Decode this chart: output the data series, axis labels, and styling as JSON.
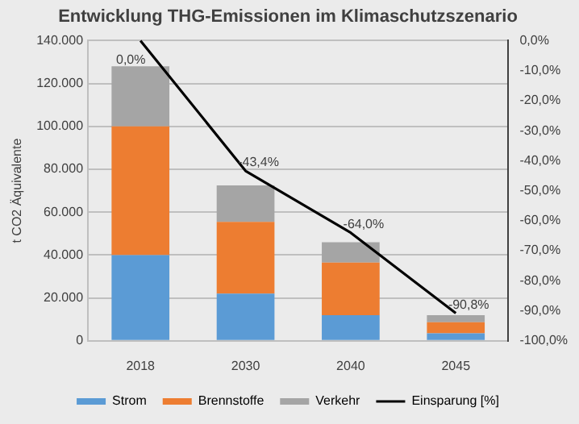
{
  "chart_data": {
    "type": "bar",
    "title": "Entwicklung THG-Emissionen im Klimaschutzszenario",
    "ylabel": "t CO2 Äquivalente",
    "categories": [
      "2018",
      "2030",
      "2040",
      "2045"
    ],
    "stacked": true,
    "series": [
      {
        "name": "Strom",
        "color": "#5b9bd5",
        "values": [
          40000,
          22000,
          12000,
          3500
        ]
      },
      {
        "name": "Brennstoffe",
        "color": "#ed7d31",
        "values": [
          60000,
          33500,
          24500,
          5200
        ]
      },
      {
        "name": "Verkehr",
        "color": "#a5a5a5",
        "values": [
          28000,
          17000,
          9500,
          3300
        ]
      },
      {
        "name": "Einsparung [%]",
        "type": "line",
        "axis": "y2",
        "color": "#000000",
        "values": [
          0,
          -43.4,
          -64,
          -90.8
        ],
        "value_labels": [
          "0,0%",
          "-43,4%",
          "-64,0%",
          "-90,8%"
        ]
      }
    ],
    "ylim": [
      0,
      140000
    ],
    "yticks": [
      {
        "value": 0,
        "label": "0"
      },
      {
        "value": 20000,
        "label": "20.000"
      },
      {
        "value": 40000,
        "label": "40.000"
      },
      {
        "value": 60000,
        "label": "60.000"
      },
      {
        "value": 80000,
        "label": "80.000"
      },
      {
        "value": 100000,
        "label": "100.000"
      },
      {
        "value": 120000,
        "label": "120.000"
      },
      {
        "value": 140000,
        "label": "140.000"
      }
    ],
    "y2lim": [
      -100,
      0
    ],
    "y2ticks": [
      {
        "value": 0,
        "label": "0,0%"
      },
      {
        "value": -10,
        "label": "-10,0%"
      },
      {
        "value": -20,
        "label": "-20,0%"
      },
      {
        "value": -30,
        "label": "-30,0%"
      },
      {
        "value": -40,
        "label": "-40,0%"
      },
      {
        "value": -50,
        "label": "-50,0%"
      },
      {
        "value": -60,
        "label": "-60,0%"
      },
      {
        "value": -70,
        "label": "-70,0%"
      },
      {
        "value": -80,
        "label": "-80,0%"
      },
      {
        "value": -90,
        "label": "-90,0%"
      },
      {
        "value": -100,
        "label": "-100,0%"
      }
    ],
    "grid": "y",
    "legend": "bottom",
    "marker": "none",
    "line_style": "solid"
  }
}
